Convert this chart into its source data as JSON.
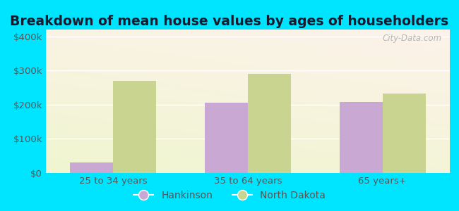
{
  "title": "Breakdown of mean house values by ages of householders",
  "categories": [
    "25 to 34 years",
    "35 to 64 years",
    "65 years+"
  ],
  "hankinson_values": [
    30000,
    205000,
    208000
  ],
  "nd_values": [
    270000,
    290000,
    232000
  ],
  "hankinson_color": "#c9a8d4",
  "nd_color": "#c8d490",
  "ylim": [
    0,
    420000
  ],
  "yticks": [
    0,
    100000,
    200000,
    300000,
    400000
  ],
  "ytick_labels": [
    "$0",
    "$100k",
    "$200k",
    "$300k",
    "$400k"
  ],
  "background_outer": "#00e5ff",
  "background_inner_top": "#f5f5f5",
  "background_inner_bottom": "#d8eedb",
  "legend_labels": [
    "Hankinson",
    "North Dakota"
  ],
  "bar_width": 0.32,
  "title_fontsize": 13.5,
  "tick_fontsize": 9.5,
  "legend_fontsize": 10,
  "watermark": "City-Data.com",
  "tick_color": "#555555"
}
